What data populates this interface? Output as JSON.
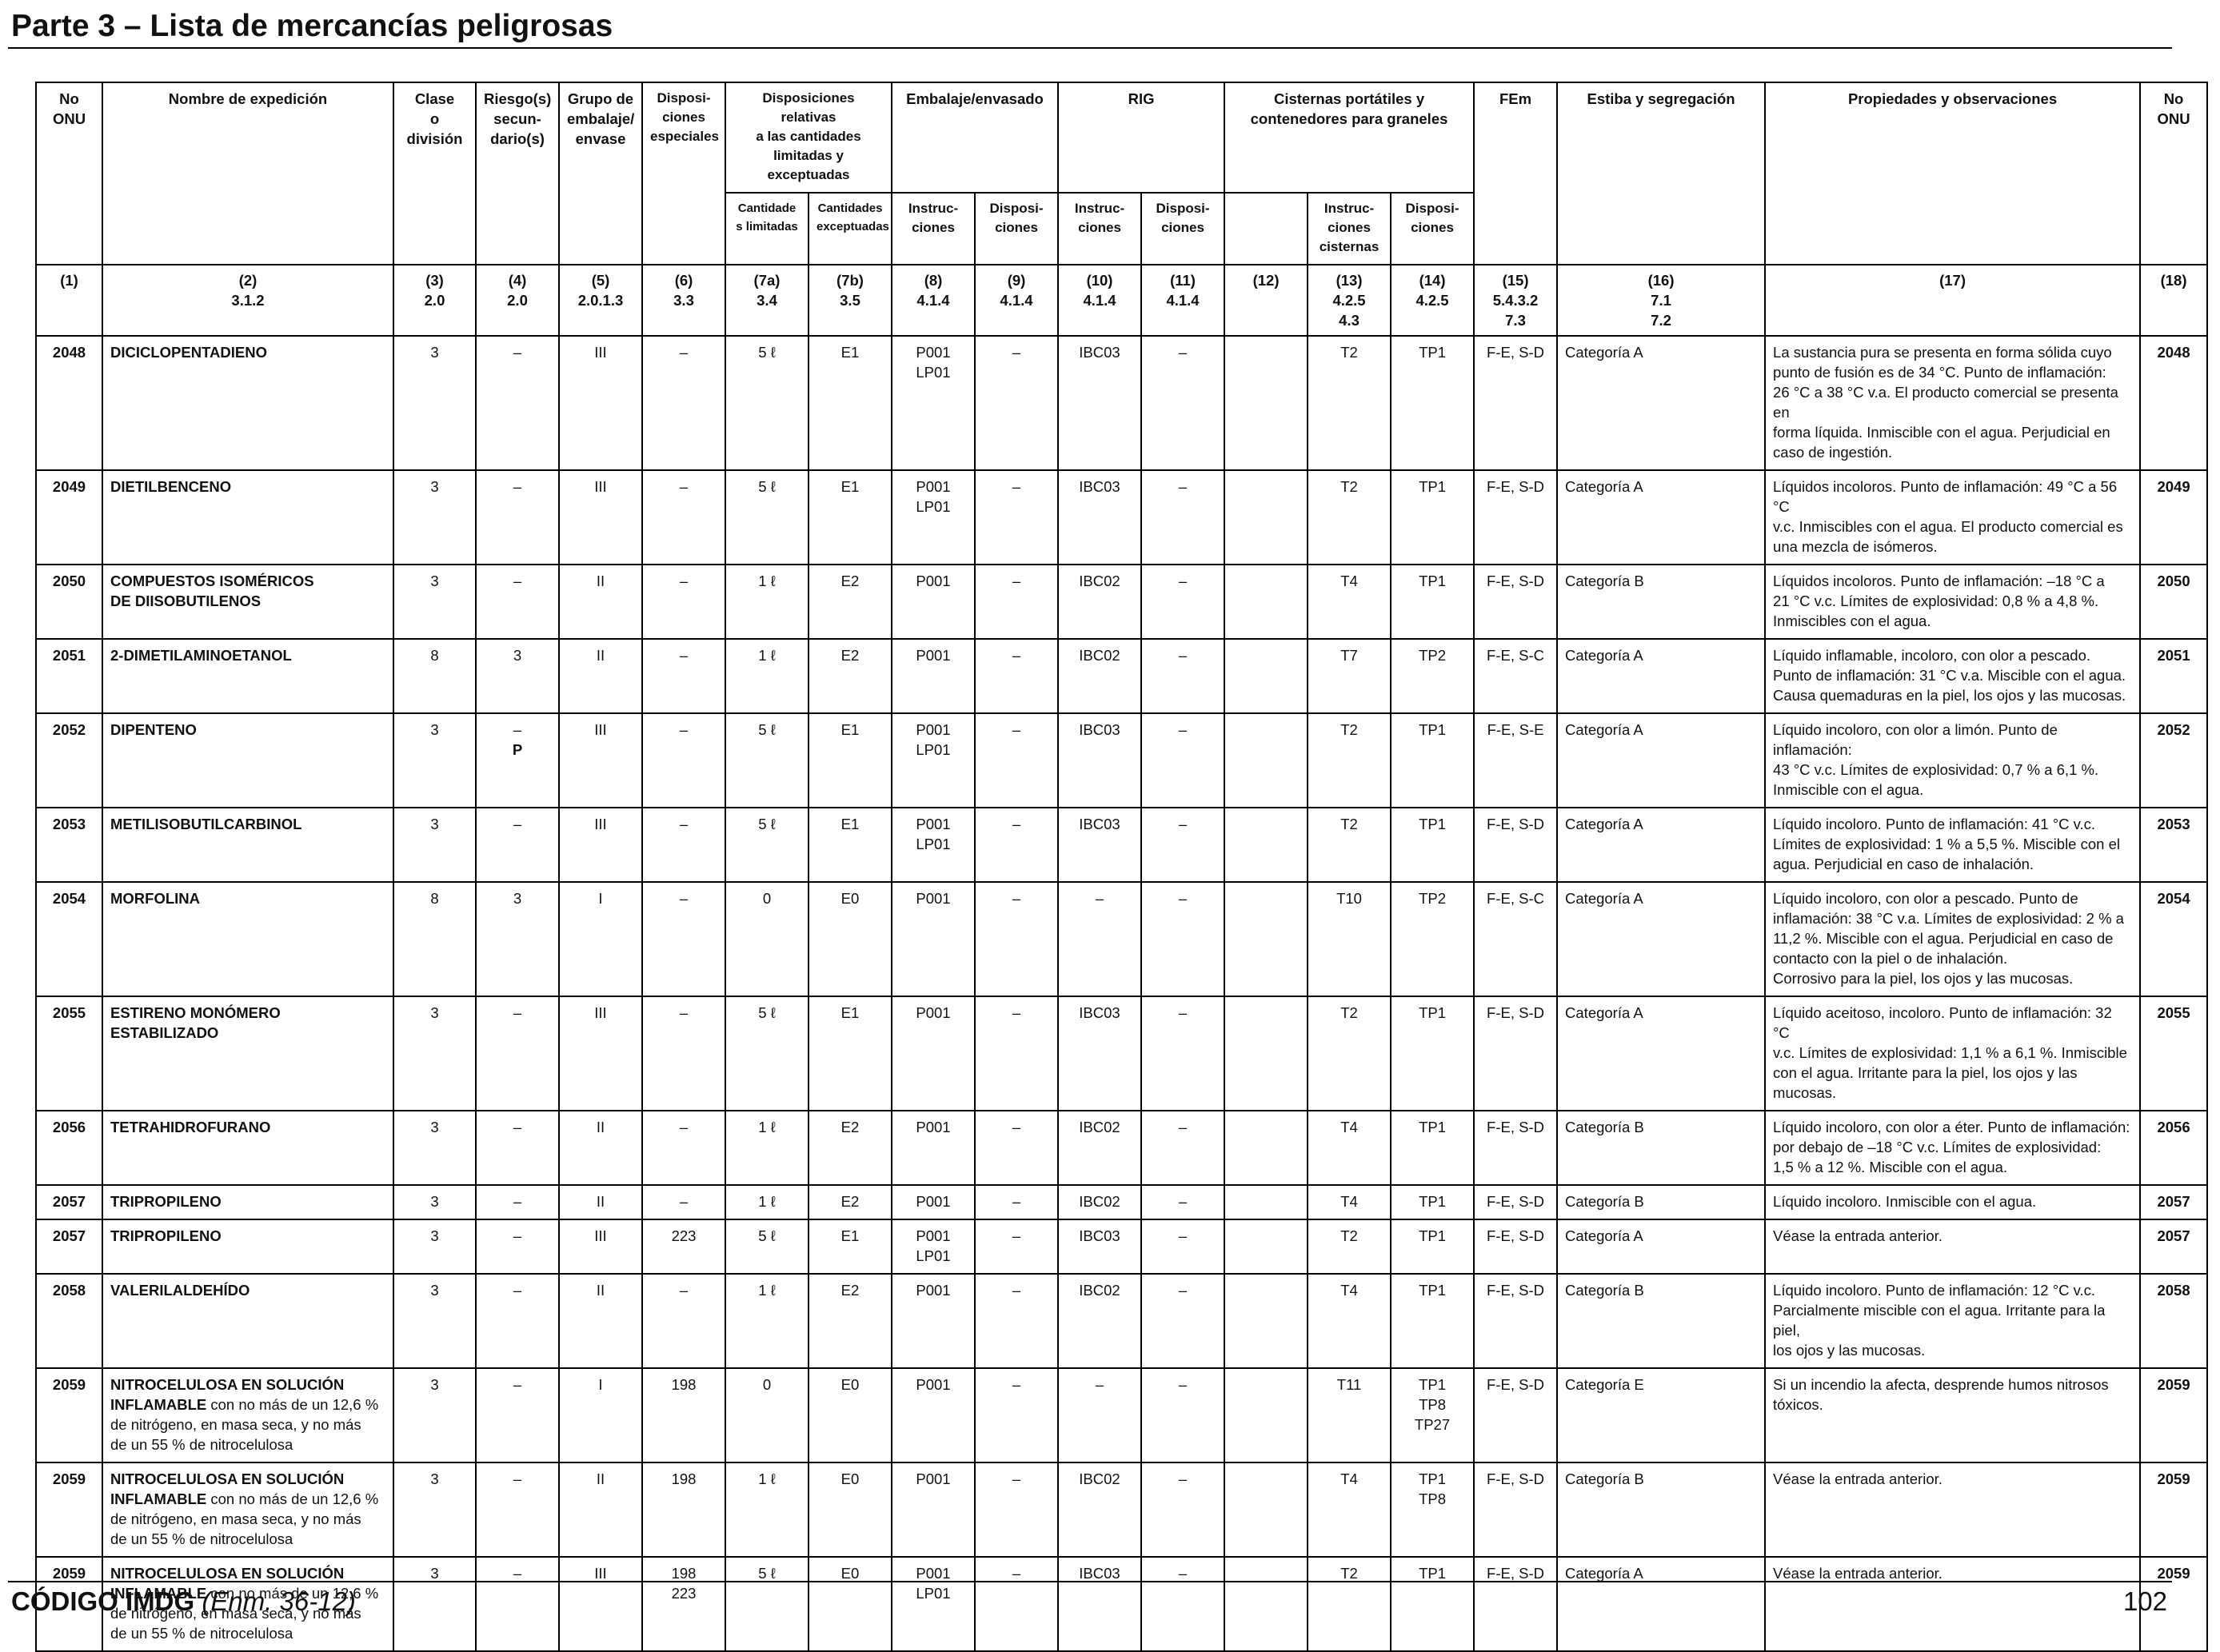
{
  "header": {
    "title": "Parte 3 – Lista de mercancías peligrosas"
  },
  "columns": {
    "no_onu": [
      "No",
      "ONU"
    ],
    "nombre": "Nombre de expedición",
    "clase": [
      "Clase",
      "o",
      "división"
    ],
    "riesgo": [
      "Riesgo(s)",
      "secun-",
      "dario(s)"
    ],
    "grupo": [
      "Grupo de",
      "embalaje/",
      "envase"
    ],
    "disp_esp": [
      "Disposi-",
      "ciones",
      "especiales"
    ],
    "disp_rel": [
      "Disposiciones relativas",
      "a las cantidades",
      "limitadas y exceptuadas"
    ],
    "cant_lim": [
      "Cantidade",
      "s limitadas"
    ],
    "cant_exc": [
      "Cantidades",
      "exceptuadas"
    ],
    "embalaje": "Embalaje/envasado",
    "emb_instr": [
      "Instruc-",
      "ciones"
    ],
    "emb_disp": [
      "Disposi-",
      "ciones"
    ],
    "rig": "RIG",
    "rig_instr": [
      "Instruc-",
      "ciones"
    ],
    "rig_disp": [
      "Disposi-",
      "ciones"
    ],
    "cisternas": [
      "Cisternas portátiles y",
      "contenedores para graneles"
    ],
    "cist_instr": [
      "Instruc-",
      "ciones",
      "cisternas"
    ],
    "cist_disp": [
      "Disposi-",
      "ciones"
    ],
    "fem": "FEm",
    "estiba": "Estiba y segregación",
    "propiedades": "Propiedades y observaciones",
    "no_onu_right": [
      "No",
      "ONU"
    ]
  },
  "column_numbers": [
    [
      "(1)"
    ],
    [
      "(2)",
      "3.1.2"
    ],
    [
      "(3)",
      "2.0"
    ],
    [
      "(4)",
      "2.0"
    ],
    [
      "(5)",
      "2.0.1.3"
    ],
    [
      "(6)",
      "3.3"
    ],
    [
      "(7a)",
      "3.4"
    ],
    [
      "(7b)",
      "3.5"
    ],
    [
      "(8)",
      "4.1.4"
    ],
    [
      "(9)",
      "4.1.4"
    ],
    [
      "(10)",
      "4.1.4"
    ],
    [
      "(11)",
      "4.1.4"
    ],
    [
      "(12)"
    ],
    [
      "(13)",
      "4.2.5",
      "4.3"
    ],
    [
      "(14)",
      "4.2.5"
    ],
    [
      "(15)",
      "5.4.3.2",
      "7.3"
    ],
    [
      "(16)",
      "7.1",
      "7.2"
    ],
    [
      "(17)"
    ],
    [
      "(18)"
    ]
  ],
  "rows": [
    {
      "un": "2048",
      "name_bold": [
        "DICICLOPENTADIENO"
      ],
      "name_normal": [],
      "clase": "3",
      "riesgo": [
        "–"
      ],
      "grupo": "III",
      "disp": [
        "–"
      ],
      "lim": "5 ℓ",
      "exc": "E1",
      "pack": [
        "P001",
        "LP01"
      ],
      "pack_disp": "–",
      "ibc": "IBC03",
      "ibc_disp": "–",
      "c12": "",
      "tank": "T2",
      "tank_disp": [
        "TP1"
      ],
      "ems": "F-E, S-D",
      "stow": "Categoría A",
      "obs": [
        "La sustancia pura se presenta en forma sólida cuyo",
        "punto de fusión es de 34 °C. Punto de inflamación:",
        "26 °C a 38 °C v.a. El producto comercial se presenta en",
        "forma líquida. Inmiscible con el agua. Perjudicial en",
        "caso de ingestión."
      ],
      "un_r": "2048"
    },
    {
      "un": "2049",
      "name_bold": [
        "DIETILBENCENO"
      ],
      "name_normal": [],
      "clase": "3",
      "riesgo": [
        "–"
      ],
      "grupo": "III",
      "disp": [
        "–"
      ],
      "lim": "5 ℓ",
      "exc": "E1",
      "pack": [
        "P001",
        "LP01"
      ],
      "pack_disp": "–",
      "ibc": "IBC03",
      "ibc_disp": "–",
      "c12": "",
      "tank": "T2",
      "tank_disp": [
        "TP1"
      ],
      "ems": "F-E, S-D",
      "stow": "Categoría A",
      "obs": [
        "Líquidos incoloros. Punto de inflamación: 49 °C a 56 °C",
        "v.c. Inmiscibles con el agua. El producto comercial es",
        "una mezcla de isómeros."
      ],
      "un_r": "2049"
    },
    {
      "un": "2050",
      "name_bold": [
        "COMPUESTOS ISOMÉRICOS",
        "DE DIISOBUTILENOS"
      ],
      "name_normal": [],
      "clase": "3",
      "riesgo": [
        "–"
      ],
      "grupo": "II",
      "disp": [
        "–"
      ],
      "lim": "1 ℓ",
      "exc": "E2",
      "pack": [
        "P001"
      ],
      "pack_disp": "–",
      "ibc": "IBC02",
      "ibc_disp": "–",
      "c12": "",
      "tank": "T4",
      "tank_disp": [
        "TP1"
      ],
      "ems": "F-E, S-D",
      "stow": "Categoría B",
      "obs": [
        "Líquidos incoloros. Punto de inflamación: –18 °C a",
        "21 °C v.c. Límites de explosividad: 0,8 % a 4,8 %.",
        "Inmiscibles con el agua."
      ],
      "un_r": "2050"
    },
    {
      "un": "2051",
      "name_bold": [
        "2-DIMETILAMINOETANOL"
      ],
      "name_normal": [],
      "clase": "8",
      "riesgo": [
        "3"
      ],
      "grupo": "II",
      "disp": [
        "–"
      ],
      "lim": "1 ℓ",
      "exc": "E2",
      "pack": [
        "P001"
      ],
      "pack_disp": "–",
      "ibc": "IBC02",
      "ibc_disp": "–",
      "c12": "",
      "tank": "T7",
      "tank_disp": [
        "TP2"
      ],
      "ems": "F-E, S-C",
      "stow": "Categoría A",
      "obs": [
        "Líquido inflamable, incoloro, con olor a pescado.",
        "Punto de inflamación: 31 °C v.a. Miscible con el agua.",
        "Causa quemaduras en la piel, los ojos y las mucosas."
      ],
      "un_r": "2051"
    },
    {
      "un": "2052",
      "name_bold": [
        "DIPENTENO"
      ],
      "name_normal": [],
      "clase": "3",
      "riesgo": [
        "–",
        "P"
      ],
      "grupo": "III",
      "disp": [
        "–"
      ],
      "lim": "5 ℓ",
      "exc": "E1",
      "pack": [
        "P001",
        "LP01"
      ],
      "pack_disp": "–",
      "ibc": "IBC03",
      "ibc_disp": "–",
      "c12": "",
      "tank": "T2",
      "tank_disp": [
        "TP1"
      ],
      "ems": "F-E, S-E",
      "stow": "Categoría A",
      "obs": [
        "Líquido incoloro, con olor a limón. Punto de inflamación:",
        "43 °C v.c. Límites de explosividad: 0,7 % a 6,1 %.",
        "Inmiscible con el agua."
      ],
      "un_r": "2052"
    },
    {
      "un": "2053",
      "name_bold": [
        "METILISOBUTILCARBINOL"
      ],
      "name_normal": [],
      "clase": "3",
      "riesgo": [
        "–"
      ],
      "grupo": "III",
      "disp": [
        "–"
      ],
      "lim": "5 ℓ",
      "exc": "E1",
      "pack": [
        "P001",
        "LP01"
      ],
      "pack_disp": "–",
      "ibc": "IBC03",
      "ibc_disp": "–",
      "c12": "",
      "tank": "T2",
      "tank_disp": [
        "TP1"
      ],
      "ems": "F-E, S-D",
      "stow": "Categoría A",
      "obs": [
        "Líquido incoloro. Punto de inflamación: 41 °C v.c.",
        "Límites de explosividad: 1 % a 5,5 %. Miscible con el",
        "agua. Perjudicial en caso de inhalación."
      ],
      "un_r": "2053"
    },
    {
      "un": "2054",
      "name_bold": [
        "MORFOLINA"
      ],
      "name_normal": [],
      "clase": "8",
      "riesgo": [
        "3"
      ],
      "grupo": "I",
      "disp": [
        "–"
      ],
      "lim": "0",
      "exc": "E0",
      "pack": [
        "P001"
      ],
      "pack_disp": "–",
      "ibc": "–",
      "ibc_disp": "–",
      "c12": "",
      "tank": "T10",
      "tank_disp": [
        "TP2"
      ],
      "ems": "F-E, S-C",
      "stow": "Categoría A",
      "obs": [
        "Líquido incoloro, con olor a pescado. Punto de",
        "inflamación: 38 °C v.a. Límites de explosividad: 2 % a",
        "11,2 %. Miscible con el agua. Perjudicial en caso de",
        "contacto con la piel o de inhalación.",
        "Corrosivo para la piel, los ojos y las mucosas."
      ],
      "un_r": "2054"
    },
    {
      "un": "2055",
      "name_bold": [
        "ESTIRENO MONÓMERO",
        "ESTABILIZADO"
      ],
      "name_normal": [],
      "clase": "3",
      "riesgo": [
        "–"
      ],
      "grupo": "III",
      "disp": [
        "–"
      ],
      "lim": "5 ℓ",
      "exc": "E1",
      "pack": [
        "P001"
      ],
      "pack_disp": "–",
      "ibc": "IBC03",
      "ibc_disp": "–",
      "c12": "",
      "tank": "T2",
      "tank_disp": [
        "TP1"
      ],
      "ems": "F-E, S-D",
      "stow": "Categoría A",
      "obs": [
        "Líquido aceitoso, incoloro. Punto de inflamación: 32 °C",
        "v.c. Límites de explosividad: 1,1 % a 6,1 %. Inmiscible",
        "con el agua. Irritante para la piel, los ojos y las",
        "mucosas."
      ],
      "un_r": "2055"
    },
    {
      "un": "2056",
      "name_bold": [
        "TETRAHIDROFURANO"
      ],
      "name_normal": [],
      "clase": "3",
      "riesgo": [
        "–"
      ],
      "grupo": "II",
      "disp": [
        "–"
      ],
      "lim": "1 ℓ",
      "exc": "E2",
      "pack": [
        "P001"
      ],
      "pack_disp": "–",
      "ibc": "IBC02",
      "ibc_disp": "–",
      "c12": "",
      "tank": "T4",
      "tank_disp": [
        "TP1"
      ],
      "ems": "F-E, S-D",
      "stow": "Categoría B",
      "obs": [
        "Líquido incoloro, con olor a éter. Punto de inflamación:",
        "por debajo de –18 °C v.c. Límites de explosividad:",
        "1,5 % a 12 %. Miscible con el agua."
      ],
      "un_r": "2056"
    },
    {
      "un": "2057",
      "name_bold": [
        "TRIPROPILENO"
      ],
      "name_normal": [],
      "clase": "3",
      "riesgo": [
        "–"
      ],
      "grupo": "II",
      "disp": [
        "–"
      ],
      "lim": "1 ℓ",
      "exc": "E2",
      "pack": [
        "P001"
      ],
      "pack_disp": "–",
      "ibc": "IBC02",
      "ibc_disp": "–",
      "c12": "",
      "tank": "T4",
      "tank_disp": [
        "TP1"
      ],
      "ems": "F-E, S-D",
      "stow": "Categoría B",
      "obs": [
        "Líquido incoloro. Inmiscible con el agua."
      ],
      "un_r": "2057"
    },
    {
      "un": "2057",
      "name_bold": [
        "TRIPROPILENO"
      ],
      "name_normal": [],
      "clase": "3",
      "riesgo": [
        "–"
      ],
      "grupo": "III",
      "disp": [
        "223"
      ],
      "lim": "5 ℓ",
      "exc": "E1",
      "pack": [
        "P001",
        "LP01"
      ],
      "pack_disp": "–",
      "ibc": "IBC03",
      "ibc_disp": "–",
      "c12": "",
      "tank": "T2",
      "tank_disp": [
        "TP1"
      ],
      "ems": "F-E, S-D",
      "stow": "Categoría A",
      "obs": [
        "Véase la entrada anterior."
      ],
      "un_r": "2057"
    },
    {
      "un": "2058",
      "name_bold": [
        "VALERILALDEHÍDO"
      ],
      "name_normal": [],
      "clase": "3",
      "riesgo": [
        "–"
      ],
      "grupo": "II",
      "disp": [
        "–"
      ],
      "lim": "1 ℓ",
      "exc": "E2",
      "pack": [
        "P001"
      ],
      "pack_disp": "–",
      "ibc": "IBC02",
      "ibc_disp": "–",
      "c12": "",
      "tank": "T4",
      "tank_disp": [
        "TP1"
      ],
      "ems": "F-E, S-D",
      "stow": "Categoría B",
      "obs": [
        "Líquido incoloro. Punto de inflamación: 12 °C v.c.",
        "Parcialmente miscible con el agua. Irritante para la piel,",
        "los ojos y las mucosas."
      ],
      "un_r": "2058"
    },
    {
      "un": "2059",
      "name_bold": [
        "NITROCELULOSA EN SOLUCIÓN",
        "INFLAMABLE"
      ],
      "name_normal": [
        " con no más de un 12,6 %",
        "de nitrógeno, en masa seca, y no más",
        "de un 55 % de nitrocelulosa"
      ],
      "clase": "3",
      "riesgo": [
        "–"
      ],
      "grupo": "I",
      "disp": [
        "198"
      ],
      "lim": "0",
      "exc": "E0",
      "pack": [
        "P001"
      ],
      "pack_disp": "–",
      "ibc": "–",
      "ibc_disp": "–",
      "c12": "",
      "tank": "T11",
      "tank_disp": [
        "TP1",
        "TP8",
        "TP27"
      ],
      "ems": "F-E, S-D",
      "stow": "Categoría E",
      "obs": [
        "Si un incendio la afecta, desprende humos nitrosos",
        "tóxicos."
      ],
      "un_r": "2059"
    },
    {
      "un": "2059",
      "name_bold": [
        "NITROCELULOSA EN SOLUCIÓN",
        "INFLAMABLE"
      ],
      "name_normal": [
        " con no más de un 12,6 %",
        "de nitrógeno, en masa seca, y no más",
        "de un 55 % de nitrocelulosa"
      ],
      "clase": "3",
      "riesgo": [
        "–"
      ],
      "grupo": "II",
      "disp": [
        "198"
      ],
      "lim": "1 ℓ",
      "exc": "E0",
      "pack": [
        "P001"
      ],
      "pack_disp": "–",
      "ibc": "IBC02",
      "ibc_disp": "–",
      "c12": "",
      "tank": "T4",
      "tank_disp": [
        "TP1",
        "TP8"
      ],
      "ems": "F-E, S-D",
      "stow": "Categoría B",
      "obs": [
        "Véase la entrada anterior."
      ],
      "un_r": "2059"
    },
    {
      "un": "2059",
      "name_bold": [
        "NITROCELULOSA EN SOLUCIÓN",
        "INFLAMABLE"
      ],
      "name_normal": [
        " con no más de un 12,6 %",
        "de nitrógeno, en masa seca, y no más",
        "de un 55 % de nitrocelulosa"
      ],
      "clase": "3",
      "riesgo": [
        "–"
      ],
      "grupo": "III",
      "disp": [
        "198",
        "223"
      ],
      "lim": "5 ℓ",
      "exc": "E0",
      "pack": [
        "P001",
        "LP01"
      ],
      "pack_disp": "–",
      "ibc": "IBC03",
      "ibc_disp": "–",
      "c12": "",
      "tank": "T2",
      "tank_disp": [
        "TP1"
      ],
      "ems": "F-E, S-D",
      "stow": "Categoría A",
      "obs": [
        "Véase la entrada anterior."
      ],
      "un_r": "2059"
    }
  ],
  "footer": {
    "code": "CÓDIGO IMDG",
    "edition": "(Enm. 36-12)",
    "page_number": "102"
  }
}
